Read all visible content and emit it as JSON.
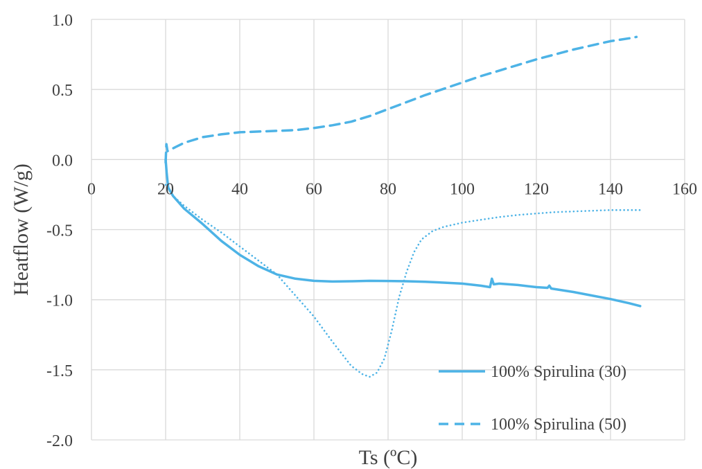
{
  "chart_data": {
    "type": "line",
    "title": "",
    "xlabel": "Ts (ºC)",
    "ylabel": "Heatflow (W/g)",
    "xlim": [
      0,
      160
    ],
    "ylim": [
      -2.0,
      1.0
    ],
    "x_ticks": [
      "0",
      "20",
      "40",
      "60",
      "80",
      "100",
      "120",
      "140",
      "160"
    ],
    "y_ticks": [
      "1.0",
      "0.5",
      "0.0",
      "-0.5",
      "-1.0",
      "-1.5",
      "-2.0"
    ],
    "grid": "vertical and horizontal",
    "legend_position": "bottom-right",
    "color": "#4db3e6",
    "series": [
      {
        "name": "100% Spirulina (30)",
        "style": "solid",
        "points": [
          [
            20,
            0.0
          ],
          [
            20.3,
            -0.1
          ],
          [
            20.7,
            -0.2
          ],
          [
            22,
            -0.26
          ],
          [
            25,
            -0.35
          ],
          [
            30,
            -0.46
          ],
          [
            35,
            -0.58
          ],
          [
            40,
            -0.68
          ],
          [
            45,
            -0.76
          ],
          [
            50,
            -0.82
          ],
          [
            55,
            -0.85
          ],
          [
            60,
            -0.865
          ],
          [
            65,
            -0.87
          ],
          [
            70,
            -0.868
          ],
          [
            75,
            -0.865
          ],
          [
            80,
            -0.866
          ],
          [
            85,
            -0.868
          ],
          [
            90,
            -0.872
          ],
          [
            95,
            -0.878
          ],
          [
            100,
            -0.885
          ],
          [
            105,
            -0.9
          ],
          [
            107.5,
            -0.91
          ],
          [
            108,
            -0.85
          ],
          [
            108.5,
            -0.89
          ],
          [
            110,
            -0.885
          ],
          [
            115,
            -0.895
          ],
          [
            120,
            -0.91
          ],
          [
            123,
            -0.915
          ],
          [
            123.5,
            -0.9
          ],
          [
            124,
            -0.92
          ],
          [
            130,
            -0.945
          ],
          [
            135,
            -0.97
          ],
          [
            140,
            -0.995
          ],
          [
            145,
            -1.025
          ],
          [
            148,
            -1.045
          ]
        ]
      },
      {
        "name": "100% Spirulina (50)",
        "style": "dashed",
        "points": [
          [
            20,
            -0.02
          ],
          [
            20.2,
            0.11
          ],
          [
            20.5,
            0.06
          ],
          [
            22,
            0.08
          ],
          [
            25,
            0.12
          ],
          [
            30,
            0.16
          ],
          [
            35,
            0.18
          ],
          [
            40,
            0.195
          ],
          [
            45,
            0.2
          ],
          [
            50,
            0.205
          ],
          [
            55,
            0.21
          ],
          [
            60,
            0.225
          ],
          [
            65,
            0.245
          ],
          [
            70,
            0.27
          ],
          [
            75,
            0.31
          ],
          [
            80,
            0.36
          ],
          [
            85,
            0.41
          ],
          [
            90,
            0.46
          ],
          [
            95,
            0.505
          ],
          [
            100,
            0.55
          ],
          [
            105,
            0.595
          ],
          [
            110,
            0.635
          ],
          [
            115,
            0.675
          ],
          [
            120,
            0.715
          ],
          [
            125,
            0.75
          ],
          [
            130,
            0.785
          ],
          [
            135,
            0.815
          ],
          [
            140,
            0.845
          ],
          [
            145,
            0.865
          ],
          [
            147,
            0.875
          ]
        ]
      },
      {
        "name": "",
        "style": "dotted",
        "points": [
          [
            20,
            -0.18
          ],
          [
            22,
            -0.26
          ],
          [
            25,
            -0.33
          ],
          [
            30,
            -0.43
          ],
          [
            35,
            -0.52
          ],
          [
            40,
            -0.62
          ],
          [
            45,
            -0.72
          ],
          [
            50,
            -0.82
          ],
          [
            55,
            -0.97
          ],
          [
            60,
            -1.12
          ],
          [
            65,
            -1.3
          ],
          [
            70,
            -1.47
          ],
          [
            73,
            -1.53
          ],
          [
            75,
            -1.55
          ],
          [
            77,
            -1.52
          ],
          [
            79,
            -1.42
          ],
          [
            81,
            -1.22
          ],
          [
            83,
            -0.98
          ],
          [
            85,
            -0.8
          ],
          [
            87,
            -0.66
          ],
          [
            89,
            -0.57
          ],
          [
            92,
            -0.51
          ],
          [
            95,
            -0.48
          ],
          [
            100,
            -0.45
          ],
          [
            105,
            -0.43
          ],
          [
            110,
            -0.41
          ],
          [
            115,
            -0.395
          ],
          [
            120,
            -0.385
          ],
          [
            125,
            -0.375
          ],
          [
            130,
            -0.37
          ],
          [
            135,
            -0.365
          ],
          [
            140,
            -0.36
          ],
          [
            145,
            -0.36
          ],
          [
            148,
            -0.36
          ]
        ]
      }
    ]
  }
}
